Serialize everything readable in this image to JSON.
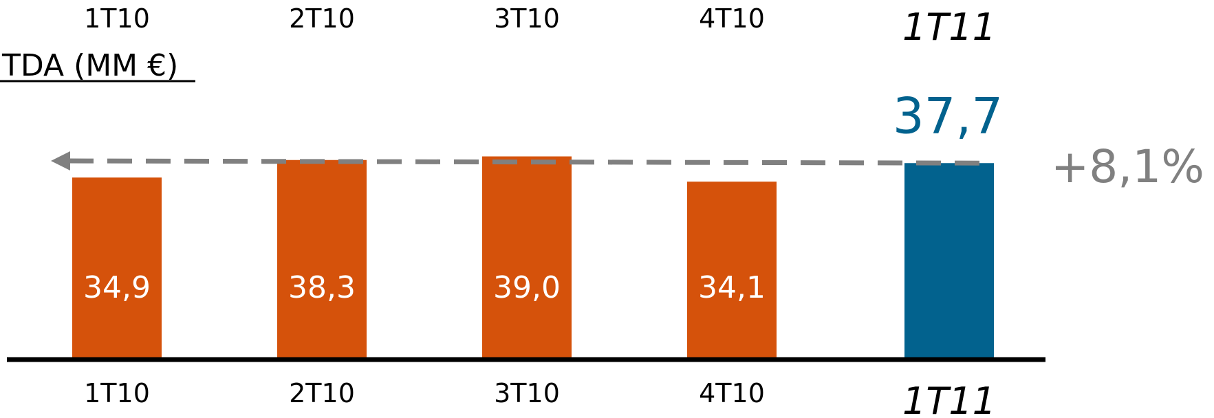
{
  "chart_data": {
    "type": "bar",
    "title": "ITDA (MM €)",
    "categories": [
      "1T10",
      "2T10",
      "3T10",
      "4T10",
      "1T11"
    ],
    "values": [
      34.9,
      38.3,
      39.0,
      34.1,
      37.7
    ],
    "value_labels": [
      "34,9",
      "38,3",
      "39,0",
      "34,1",
      "37,7"
    ],
    "highlight_index": 4,
    "ylim": [
      0,
      44
    ],
    "grid": false,
    "legend": "none",
    "change_annotation": "+8,1%",
    "colors": {
      "bar": "#d5520b",
      "highlight": "#02628e",
      "arrow": "#808080",
      "axis": "#000000"
    }
  }
}
